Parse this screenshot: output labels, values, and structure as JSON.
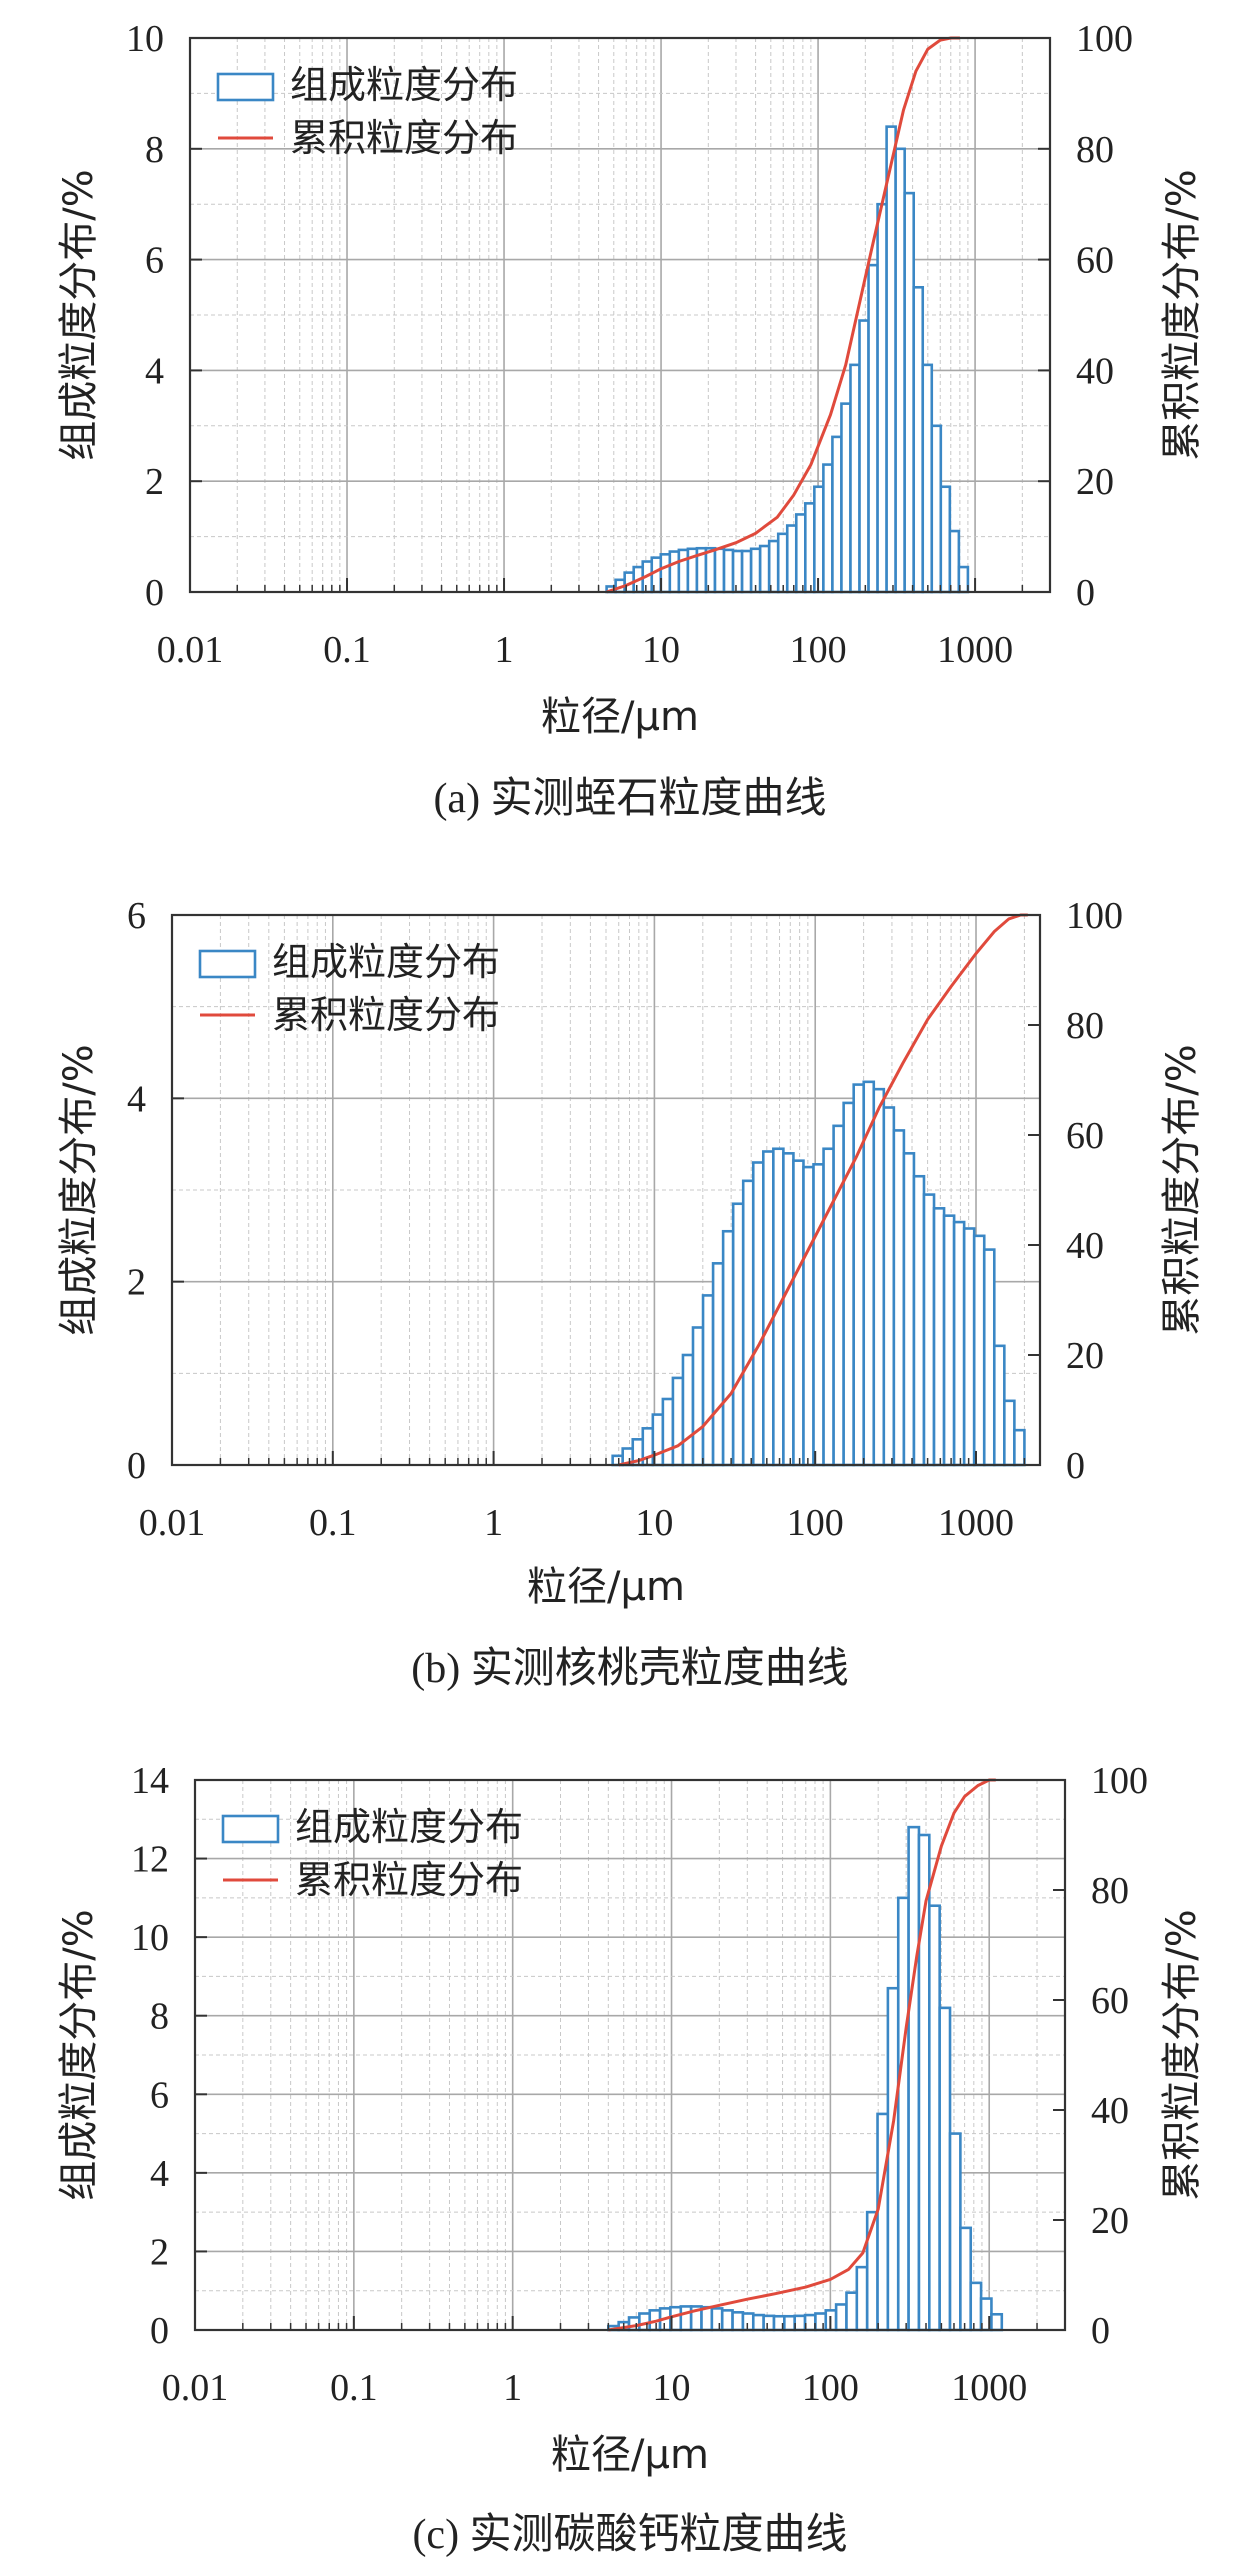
{
  "legend": {
    "bar_label": "组成粒度分布",
    "line_label": "累积粒度分布"
  },
  "colors": {
    "bar": "#3a87c5",
    "line": "#e04a3c",
    "grid_major": "#a8a8a8",
    "grid_minor": "#c8c8c8",
    "axis": "#333333"
  },
  "chart_data": [
    {
      "type": "bar",
      "caption": "(a) 实测蛭石粒度曲线",
      "xlabel": "粒径/μm",
      "ylabel": "组成粒度分布/%",
      "y2label": "累积粒度分布/%",
      "xscale": "log",
      "xlim": [
        0.01,
        3000
      ],
      "ylim": [
        0,
        10
      ],
      "y2lim": [
        0,
        100
      ],
      "xticks": [
        "0.01",
        "0.1",
        "1",
        "10",
        "100",
        "1000"
      ],
      "yticks": [
        "0",
        "2",
        "4",
        "6",
        "8",
        "10"
      ],
      "y2ticks": [
        "0",
        "20",
        "40",
        "60",
        "80",
        "100"
      ],
      "grid": true,
      "legend_position": "top-left",
      "bar_x_start": 4.5,
      "bar_x_end": 900,
      "bar_values": [
        0.1,
        0.22,
        0.35,
        0.45,
        0.55,
        0.62,
        0.68,
        0.73,
        0.76,
        0.78,
        0.79,
        0.79,
        0.78,
        0.76,
        0.74,
        0.74,
        0.78,
        0.83,
        0.92,
        1.05,
        1.2,
        1.4,
        1.6,
        1.9,
        2.3,
        2.8,
        3.4,
        4.1,
        4.9,
        5.9,
        7.0,
        8.4,
        8.0,
        7.2,
        5.5,
        4.1,
        3.0,
        1.9,
        1.1,
        0.45
      ],
      "series": [
        {
          "name": "组成粒度分布",
          "type": "bar"
        },
        {
          "name": "累积粒度分布",
          "type": "line",
          "x": [
            4.5,
            6,
            8,
            10,
            13,
            17,
            22,
            30,
            40,
            55,
            70,
            90,
            120,
            150,
            180,
            220,
            280,
            350,
            420,
            500,
            600,
            700,
            800
          ],
          "y": [
            0,
            1.2,
            2.8,
            4.2,
            5.5,
            6.6,
            7.6,
            8.9,
            10.6,
            13.5,
            17.5,
            23,
            32,
            41,
            51,
            62,
            75,
            87,
            94,
            98,
            99.6,
            100,
            100
          ]
        }
      ]
    },
    {
      "type": "bar",
      "caption": "(b) 实测核桃壳粒度曲线",
      "xlabel": "粒径/μm",
      "ylabel": "组成粒度分布/%",
      "y2label": "累积粒度分布/%",
      "xscale": "log",
      "xlim": [
        0.01,
        2500
      ],
      "ylim": [
        0,
        6
      ],
      "y2lim": [
        0,
        100
      ],
      "xticks": [
        "0.01",
        "0.1",
        "1",
        "10",
        "100",
        "1000"
      ],
      "yticks": [
        "0",
        "2",
        "4",
        "6"
      ],
      "y2ticks": [
        "0",
        "20",
        "40",
        "60",
        "80",
        "100"
      ],
      "grid": true,
      "legend_position": "top-left",
      "bar_x_start": 5.5,
      "bar_x_end": 2000,
      "bar_values": [
        0.1,
        0.18,
        0.28,
        0.4,
        0.55,
        0.72,
        0.95,
        1.2,
        1.5,
        1.85,
        2.2,
        2.55,
        2.85,
        3.1,
        3.3,
        3.42,
        3.45,
        3.4,
        3.32,
        3.25,
        3.28,
        3.45,
        3.7,
        3.95,
        4.15,
        4.18,
        4.1,
        3.9,
        3.65,
        3.4,
        3.15,
        2.95,
        2.8,
        2.72,
        2.65,
        2.58,
        2.5,
        2.35,
        1.3,
        0.7,
        0.38
      ],
      "series": [
        {
          "name": "组成粒度分布",
          "type": "bar"
        },
        {
          "name": "累积粒度分布",
          "type": "line",
          "x": [
            6,
            8,
            10,
            14,
            20,
            30,
            45,
            65,
            90,
            130,
            180,
            250,
            350,
            500,
            700,
            1000,
            1300,
            1600,
            1900,
            2100
          ],
          "y": [
            0,
            0.8,
            1.8,
            3.5,
            7,
            13,
            22,
            31,
            39,
            48,
            56,
            65,
            73,
            81,
            87,
            93,
            97,
            99.3,
            100,
            100
          ]
        }
      ]
    },
    {
      "type": "bar",
      "caption": "(c) 实测碳酸钙粒度曲线",
      "xlabel": "粒径/μm",
      "ylabel": "组成粒度分布/%",
      "y2label": "累积粒度分布/%",
      "xscale": "log",
      "xlim": [
        0.01,
        3000
      ],
      "ylim": [
        0,
        14
      ],
      "y2lim": [
        0,
        100
      ],
      "xticks": [
        "0.01",
        "0.1",
        "1",
        "10",
        "100",
        "1000"
      ],
      "yticks": [
        "0",
        "2",
        "4",
        "6",
        "8",
        "10",
        "12",
        "14"
      ],
      "y2ticks": [
        "0",
        "20",
        "40",
        "60",
        "80",
        "100"
      ],
      "grid": true,
      "legend_position": "top-left",
      "bar_x_start": 4,
      "bar_x_end": 1200,
      "bar_values": [
        0.1,
        0.2,
        0.32,
        0.42,
        0.5,
        0.55,
        0.58,
        0.6,
        0.6,
        0.58,
        0.55,
        0.5,
        0.45,
        0.42,
        0.38,
        0.36,
        0.35,
        0.35,
        0.36,
        0.38,
        0.42,
        0.5,
        0.65,
        0.95,
        1.6,
        3.0,
        5.5,
        8.7,
        11.0,
        12.8,
        12.6,
        10.8,
        8.2,
        5.0,
        2.6,
        1.2,
        0.8,
        0.4
      ],
      "series": [
        {
          "name": "组成粒度分布",
          "type": "bar"
        },
        {
          "name": "累积粒度分布",
          "type": "line",
          "x": [
            4,
            6,
            8,
            10,
            14,
            20,
            30,
            45,
            70,
            100,
            130,
            160,
            200,
            250,
            300,
            350,
            400,
            500,
            600,
            700,
            850,
            1000,
            1100
          ],
          "y": [
            0,
            0.8,
            1.6,
            2.4,
            3.5,
            4.5,
            5.6,
            6.6,
            7.8,
            9.2,
            11,
            14,
            22,
            38,
            55,
            68,
            78,
            88,
            94,
            97,
            99,
            100,
            100
          ]
        }
      ]
    }
  ]
}
